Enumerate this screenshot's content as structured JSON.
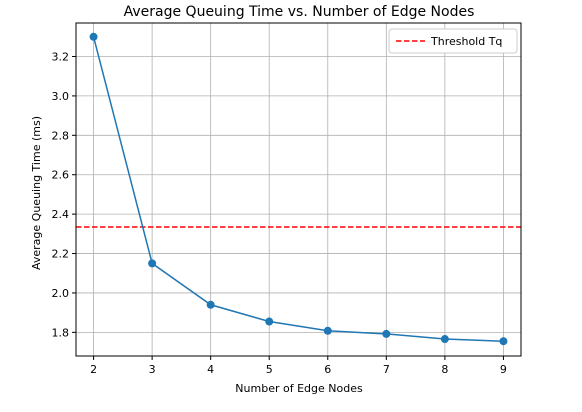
{
  "chart_data": {
    "type": "line",
    "title": "Average Queuing Time vs. Number of Edge Nodes",
    "xlabel": "Number of Edge Nodes",
    "ylabel": "Average Queuing Time (ms)",
    "x": [
      2,
      3,
      4,
      5,
      6,
      7,
      8,
      9
    ],
    "series": [
      {
        "values": [
          3.3,
          2.15,
          1.94,
          1.855,
          1.808,
          1.792,
          1.766,
          1.755
        ],
        "color": "#1f77b4"
      }
    ],
    "threshold": {
      "name": "Threshold Tq",
      "value": 2.335,
      "color": "#ff0000"
    },
    "xlim": [
      1.7,
      9.3
    ],
    "ylim": [
      1.68,
      3.37
    ],
    "xticks": [
      2,
      3,
      4,
      5,
      6,
      7,
      8,
      9
    ],
    "yticks": [
      1.8,
      2.0,
      2.2,
      2.4,
      2.6,
      2.8,
      3.0,
      3.2
    ],
    "ytick_labels": [
      "1.8",
      "2.0",
      "2.2",
      "2.4",
      "2.6",
      "2.8",
      "3.0",
      "3.2"
    ],
    "grid": true,
    "legend_position": "top-right"
  }
}
